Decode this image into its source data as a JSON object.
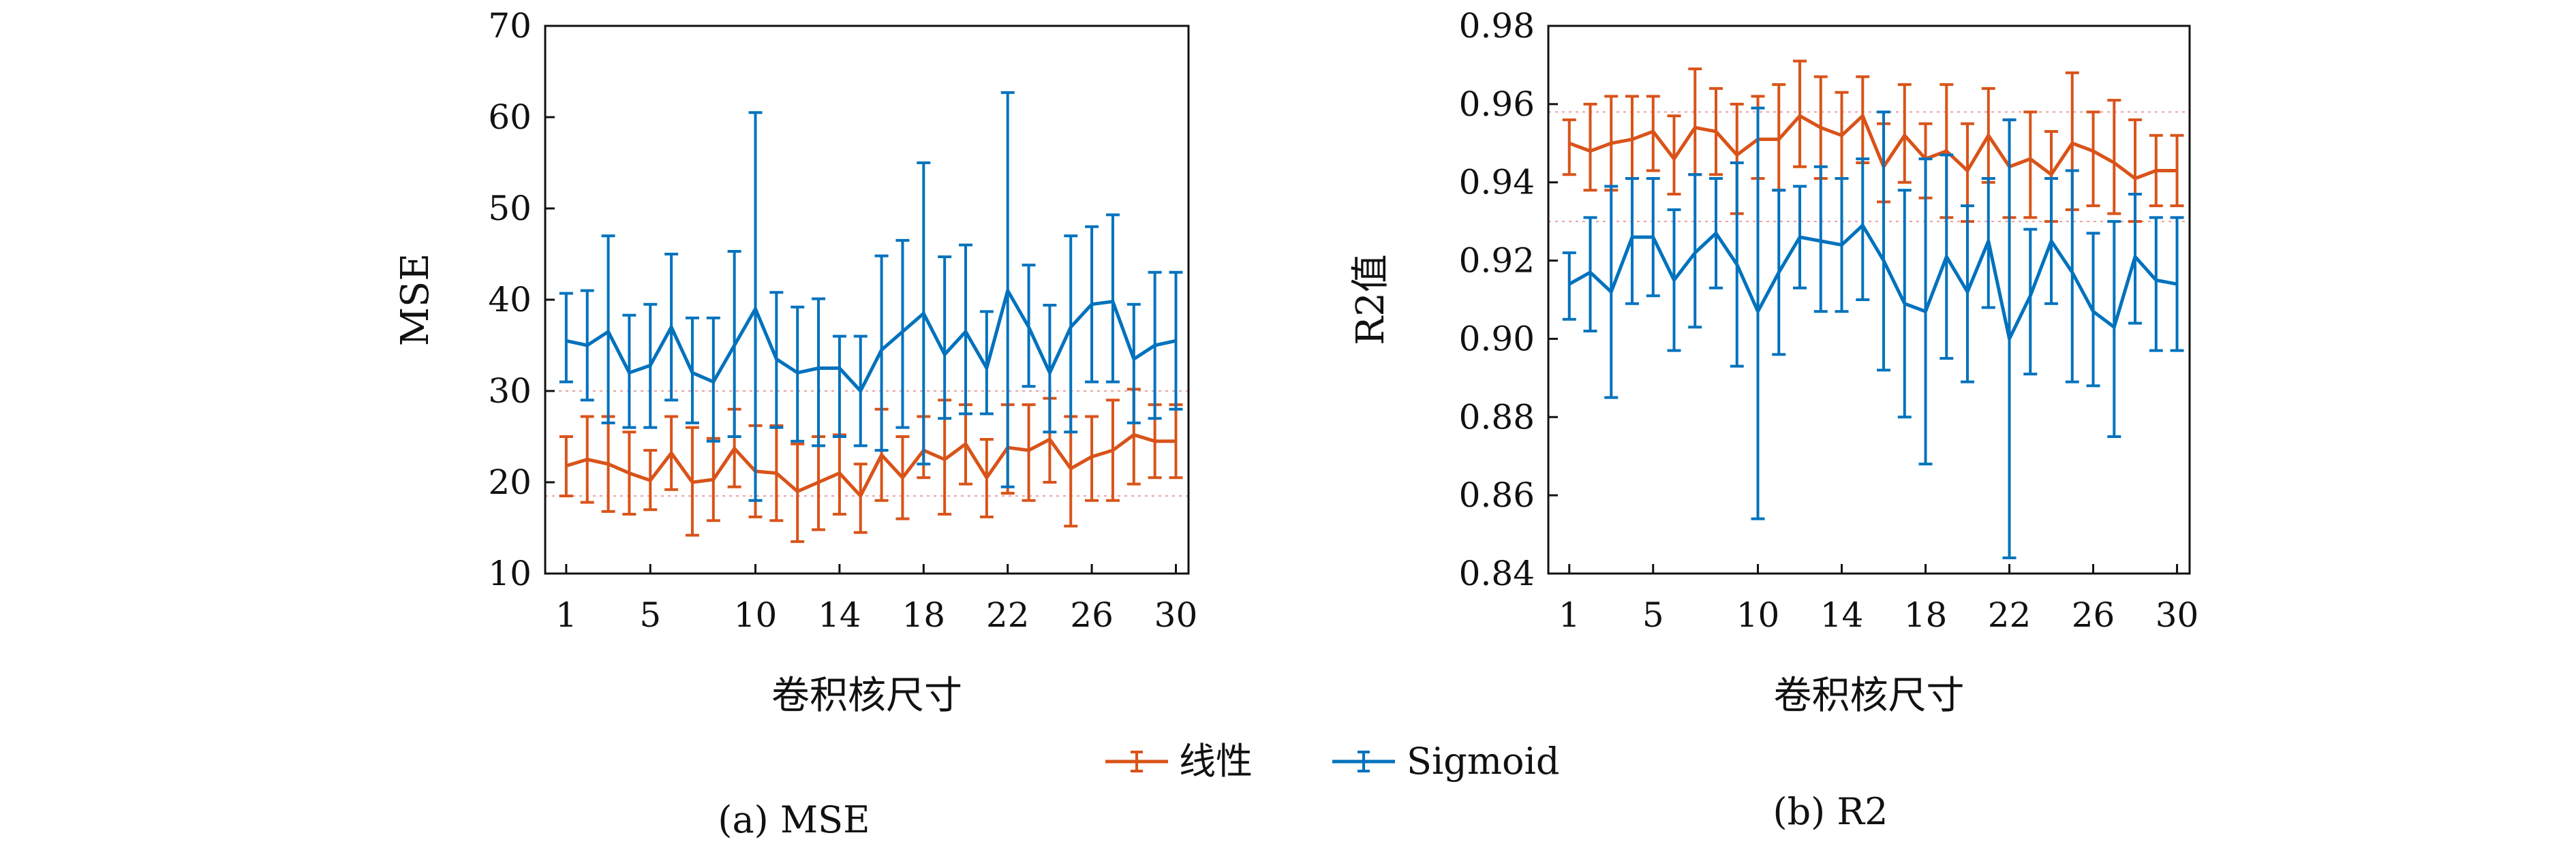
{
  "legend": {
    "items": [
      {
        "label": "线性",
        "color": "#d95319"
      },
      {
        "label": "Sigmoid",
        "color": "#0072bd"
      }
    ]
  },
  "chart_data": [
    {
      "type": "line",
      "caption": "(a) MSE",
      "xlabel": "卷积核尺寸",
      "ylabel": "MSE",
      "xlim": [
        0,
        30.6
      ],
      "ylim": [
        10,
        70
      ],
      "xticks": [
        1,
        5,
        10,
        14,
        18,
        22,
        26,
        30
      ],
      "yticks": [
        10,
        20,
        30,
        40,
        50,
        60,
        70
      ],
      "error_bars": true,
      "reference_lines": [
        18.5,
        30
      ],
      "x": [
        1,
        2,
        3,
        4,
        5,
        6,
        7,
        8,
        9,
        10,
        11,
        12,
        13,
        14,
        15,
        16,
        17,
        18,
        19,
        20,
        21,
        22,
        23,
        24,
        25,
        26,
        27,
        28,
        29,
        30
      ],
      "series": [
        {
          "name": "线性",
          "color": "#d95319",
          "values": [
            21.8,
            22.5,
            22.0,
            21.0,
            20.2,
            23.2,
            20.0,
            20.3,
            23.7,
            21.2,
            21.0,
            19.0,
            20.0,
            21.0,
            18.5,
            23.0,
            20.5,
            23.5,
            22.5,
            24.2,
            20.5,
            23.8,
            23.5,
            24.7,
            21.5,
            22.8,
            23.5,
            25.2,
            24.5,
            24.5
          ],
          "lower": [
            18.5,
            17.8,
            16.8,
            16.5,
            17.0,
            19.2,
            14.2,
            15.8,
            19.5,
            16.2,
            15.8,
            13.5,
            14.8,
            16.5,
            14.5,
            18.0,
            16.0,
            20.5,
            16.5,
            19.8,
            16.2,
            18.8,
            18.0,
            20.0,
            15.2,
            18.0,
            18.0,
            19.8,
            20.5,
            20.5
          ],
          "upper": [
            25.0,
            27.2,
            27.2,
            25.5,
            23.5,
            27.2,
            26.0,
            24.8,
            28.0,
            26.2,
            26.2,
            24.2,
            25.0,
            25.2,
            22.0,
            28.0,
            25.0,
            27.2,
            29.0,
            28.5,
            24.7,
            28.5,
            28.5,
            29.2,
            27.2,
            27.2,
            29.0,
            30.2,
            28.5,
            28.5
          ]
        },
        {
          "name": "Sigmoid",
          "color": "#0072bd",
          "values": [
            35.5,
            35.0,
            36.5,
            32.0,
            32.8,
            37.0,
            32.0,
            31.0,
            35.0,
            39.0,
            33.5,
            32.0,
            32.5,
            32.5,
            30.0,
            34.5,
            36.5,
            38.5,
            34.0,
            36.5,
            32.5,
            41.0,
            37.0,
            32.0,
            37.0,
            39.5,
            39.8,
            33.5,
            35.0,
            35.5
          ],
          "lower": [
            31.0,
            29.0,
            26.5,
            26.0,
            26.0,
            29.0,
            26.5,
            24.5,
            25.0,
            18.0,
            26.0,
            24.5,
            24.0,
            25.0,
            24.0,
            23.5,
            26.0,
            22.0,
            27.0,
            27.5,
            27.5,
            19.5,
            30.5,
            25.5,
            25.5,
            31.0,
            31.0,
            26.5,
            27.0,
            28.0
          ],
          "upper": [
            40.7,
            41.0,
            47.0,
            38.3,
            39.5,
            45.0,
            38.0,
            38.0,
            45.3,
            60.5,
            40.8,
            39.2,
            40.1,
            36.0,
            36.0,
            44.8,
            46.5,
            55.0,
            44.7,
            46.0,
            38.7,
            62.7,
            43.8,
            39.4,
            47.0,
            48.0,
            49.3,
            39.5,
            43.0,
            43.0
          ]
        }
      ]
    },
    {
      "type": "line",
      "caption": "(b) R2",
      "xlabel": "卷积核尺寸",
      "ylabel": "R2值",
      "xlim": [
        0,
        30.6
      ],
      "ylim": [
        0.84,
        0.98
      ],
      "xticks": [
        1,
        5,
        10,
        14,
        18,
        22,
        26,
        30
      ],
      "yticks": [
        "0.84",
        "0.86",
        "0.88",
        "0.90",
        "0.92",
        "0.94",
        "0.96",
        "0.98"
      ],
      "error_bars": true,
      "reference_lines": [
        0.958,
        0.93
      ],
      "x": [
        1,
        2,
        3,
        4,
        5,
        6,
        7,
        8,
        9,
        10,
        11,
        12,
        13,
        14,
        15,
        16,
        17,
        18,
        19,
        20,
        21,
        22,
        23,
        24,
        25,
        26,
        27,
        28,
        29,
        30
      ],
      "series": [
        {
          "name": "线性",
          "color": "#d95319",
          "values": [
            0.95,
            0.948,
            0.95,
            0.951,
            0.953,
            0.946,
            0.954,
            0.953,
            0.947,
            0.951,
            0.951,
            0.957,
            0.954,
            0.952,
            0.957,
            0.944,
            0.952,
            0.946,
            0.948,
            0.943,
            0.952,
            0.944,
            0.946,
            0.942,
            0.95,
            0.948,
            0.945,
            0.941,
            0.943,
            0.943
          ],
          "lower": [
            0.942,
            0.938,
            0.938,
            0.941,
            0.943,
            0.937,
            0.942,
            0.942,
            0.932,
            0.941,
            0.938,
            0.944,
            0.941,
            0.941,
            0.945,
            0.935,
            0.94,
            0.936,
            0.931,
            0.93,
            0.94,
            0.931,
            0.931,
            0.93,
            0.933,
            0.934,
            0.932,
            0.93,
            0.934,
            0.934
          ],
          "upper": [
            0.956,
            0.96,
            0.962,
            0.962,
            0.962,
            0.957,
            0.969,
            0.964,
            0.96,
            0.962,
            0.965,
            0.971,
            0.967,
            0.963,
            0.967,
            0.955,
            0.965,
            0.955,
            0.965,
            0.955,
            0.964,
            0.956,
            0.958,
            0.953,
            0.968,
            0.958,
            0.961,
            0.956,
            0.952,
            0.952
          ]
        },
        {
          "name": "Sigmoid",
          "color": "#0072bd",
          "values": [
            0.914,
            0.917,
            0.912,
            0.926,
            0.926,
            0.915,
            0.922,
            0.927,
            0.919,
            0.907,
            0.917,
            0.926,
            0.925,
            0.924,
            0.929,
            0.92,
            0.909,
            0.907,
            0.921,
            0.912,
            0.925,
            0.9,
            0.911,
            0.925,
            0.917,
            0.907,
            0.903,
            0.921,
            0.915,
            0.914
          ],
          "lower": [
            0.905,
            0.902,
            0.885,
            0.909,
            0.911,
            0.897,
            0.903,
            0.913,
            0.893,
            0.854,
            0.896,
            0.913,
            0.907,
            0.907,
            0.91,
            0.892,
            0.88,
            0.868,
            0.895,
            0.889,
            0.908,
            0.844,
            0.891,
            0.909,
            0.889,
            0.888,
            0.875,
            0.904,
            0.897,
            0.897
          ],
          "upper": [
            0.922,
            0.931,
            0.939,
            0.941,
            0.941,
            0.933,
            0.942,
            0.941,
            0.945,
            0.959,
            0.938,
            0.939,
            0.944,
            0.941,
            0.946,
            0.958,
            0.938,
            0.946,
            0.947,
            0.934,
            0.941,
            0.956,
            0.928,
            0.941,
            0.943,
            0.927,
            0.93,
            0.937,
            0.931,
            0.931
          ]
        }
      ]
    }
  ]
}
